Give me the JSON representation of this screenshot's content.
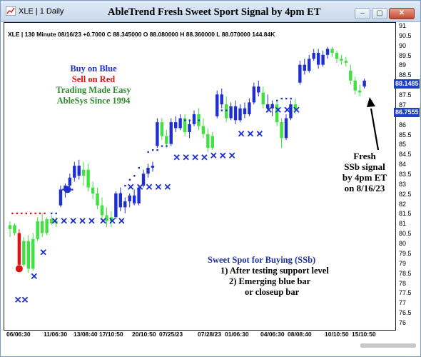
{
  "window": {
    "title": "XLE | 1 Daily",
    "headline": "AbleTrend Fresh Sweet Sport Signal by 4pm ET",
    "minimize_symbol": "–",
    "maximize_symbol": "▢",
    "close_symbol": "✕"
  },
  "chart_info": "XLE | 130 Minute 08/16/23 +0.7000 C 88.345000 O 88.080000 H 88.360000 L 88.070000 144.84K",
  "legend": {
    "buy": "Buy on Blue",
    "sell": "Sell on Red",
    "slogan": "Trading Made Easy",
    "since": "AbleSys Since 1994"
  },
  "fresh_note": {
    "line1": "Fresh",
    "line2": "SSb signal",
    "line3": "by 4pm ET",
    "line4": "on 8/16/23"
  },
  "ssb": {
    "title": "Sweet Spot for Buying (SSb)",
    "line1": "1) After testing support level",
    "line2": "2) Emerging blue bar",
    "line3": "or closeup bar"
  },
  "price_flags": {
    "current": "88.1485",
    "support": "86.7555"
  },
  "colors": {
    "blue_bar": "#1e2fd0",
    "green_bar": "#3fe23f",
    "red_bar": "#e01010",
    "title_blue": "#1a2fa8",
    "buy_text": "#1e2fd0",
    "sell_text": "#e01010",
    "slogan_text": "#2e8b2e"
  },
  "icons": [
    "app-icon",
    "arrow-icon"
  ],
  "chart_data": {
    "type": "candlestick",
    "title": "AbleTrend Fresh Sweet Sport Signal by 4pm ET",
    "ylim": [
      76,
      91
    ],
    "y_ticks": [
      "91",
      "90.5",
      "90",
      "89.5",
      "89",
      "88.5",
      "88",
      "87.5",
      "87",
      "86.5",
      "86",
      "85.5",
      "85",
      "84.5",
      "84",
      "83.5",
      "83",
      "82.5",
      "82",
      "81.5",
      "81",
      "80.5",
      "80",
      "79.5",
      "79",
      "78.5",
      "78",
      "77.5",
      "77",
      "76.5",
      "76"
    ],
    "x_ticks": [
      "06/06:30",
      "11/06:30",
      "13/08:40",
      "17/10:50",
      "20/10:50",
      "07/25/23",
      "07/28/23",
      "01/06:30",
      "04/06:30",
      "08/08:40",
      "10/10:50",
      "15/10:50"
    ],
    "grid": false,
    "bars": [
      {
        "x": 0,
        "o": 80.8,
        "h": 81.2,
        "l": 80.4,
        "c": 81.0,
        "color": "green"
      },
      {
        "x": 1,
        "o": 81.0,
        "h": 81.1,
        "l": 80.5,
        "c": 80.6,
        "color": "green"
      },
      {
        "x": 2,
        "o": 80.6,
        "h": 80.8,
        "l": 78.8,
        "c": 79.0,
        "color": "red"
      },
      {
        "x": 3,
        "o": 79.0,
        "h": 80.4,
        "l": 78.9,
        "c": 80.2,
        "color": "green"
      },
      {
        "x": 4,
        "o": 80.2,
        "h": 80.5,
        "l": 78.6,
        "c": 78.8,
        "color": "green"
      },
      {
        "x": 5,
        "o": 78.8,
        "h": 80.6,
        "l": 78.7,
        "c": 80.3,
        "color": "green"
      },
      {
        "x": 6,
        "o": 80.3,
        "h": 81.4,
        "l": 80.2,
        "c": 81.2,
        "color": "green"
      },
      {
        "x": 7,
        "o": 81.2,
        "h": 81.6,
        "l": 80.4,
        "c": 80.6,
        "color": "green"
      },
      {
        "x": 8,
        "o": 80.6,
        "h": 81.4,
        "l": 80.5,
        "c": 81.3,
        "color": "green"
      },
      {
        "x": 9,
        "o": 81.3,
        "h": 81.5,
        "l": 81.0,
        "c": 81.1,
        "color": "green"
      },
      {
        "x": 10,
        "o": 81.1,
        "h": 81.4,
        "l": 80.9,
        "c": 81.2,
        "color": "green"
      },
      {
        "x": 11,
        "o": 82.0,
        "h": 83.0,
        "l": 81.9,
        "c": 82.8,
        "color": "blue"
      },
      {
        "x": 12,
        "o": 82.8,
        "h": 83.1,
        "l": 82.4,
        "c": 83.0,
        "color": "blue"
      },
      {
        "x": 13,
        "o": 83.0,
        "h": 83.6,
        "l": 82.9,
        "c": 83.4,
        "color": "blue"
      },
      {
        "x": 14,
        "o": 83.4,
        "h": 84.2,
        "l": 83.2,
        "c": 84.0,
        "color": "blue"
      },
      {
        "x": 15,
        "o": 84.0,
        "h": 84.3,
        "l": 83.3,
        "c": 83.5,
        "color": "blue"
      },
      {
        "x": 16,
        "o": 83.5,
        "h": 84.2,
        "l": 83.0,
        "c": 83.8,
        "color": "green"
      },
      {
        "x": 17,
        "o": 83.8,
        "h": 84.1,
        "l": 82.7,
        "c": 82.9,
        "color": "green"
      },
      {
        "x": 18,
        "o": 82.9,
        "h": 83.2,
        "l": 82.3,
        "c": 82.6,
        "color": "green"
      },
      {
        "x": 19,
        "o": 82.6,
        "h": 82.9,
        "l": 81.8,
        "c": 82.0,
        "color": "green"
      },
      {
        "x": 20,
        "o": 82.0,
        "h": 82.4,
        "l": 81.3,
        "c": 81.5,
        "color": "green"
      },
      {
        "x": 21,
        "o": 81.5,
        "h": 81.9,
        "l": 80.9,
        "c": 81.2,
        "color": "green"
      },
      {
        "x": 22,
        "o": 81.2,
        "h": 81.7,
        "l": 80.9,
        "c": 81.4,
        "color": "green"
      },
      {
        "x": 23,
        "o": 81.4,
        "h": 82.7,
        "l": 81.3,
        "c": 82.6,
        "color": "blue"
      },
      {
        "x": 24,
        "o": 82.6,
        "h": 82.9,
        "l": 81.7,
        "c": 81.9,
        "color": "blue"
      },
      {
        "x": 25,
        "o": 81.9,
        "h": 82.4,
        "l": 81.6,
        "c": 82.2,
        "color": "blue"
      },
      {
        "x": 26,
        "o": 82.2,
        "h": 82.6,
        "l": 81.9,
        "c": 82.5,
        "color": "blue"
      },
      {
        "x": 27,
        "o": 82.5,
        "h": 82.8,
        "l": 82.0,
        "c": 82.1,
        "color": "blue"
      },
      {
        "x": 28,
        "o": 82.1,
        "h": 83.0,
        "l": 82.0,
        "c": 82.9,
        "color": "blue"
      },
      {
        "x": 29,
        "o": 83.0,
        "h": 83.8,
        "l": 82.9,
        "c": 83.6,
        "color": "blue"
      },
      {
        "x": 30,
        "o": 83.6,
        "h": 84.1,
        "l": 83.4,
        "c": 83.9,
        "color": "blue"
      },
      {
        "x": 31,
        "o": 83.9,
        "h": 84.2,
        "l": 83.7,
        "c": 84.0,
        "color": "blue"
      },
      {
        "x": 32,
        "o": 85.0,
        "h": 86.4,
        "l": 84.9,
        "c": 86.2,
        "color": "blue"
      },
      {
        "x": 33,
        "o": 86.2,
        "h": 86.4,
        "l": 85.3,
        "c": 85.5,
        "color": "green"
      },
      {
        "x": 34,
        "o": 85.5,
        "h": 85.8,
        "l": 84.9,
        "c": 85.1,
        "color": "green"
      },
      {
        "x": 35,
        "o": 85.1,
        "h": 86.4,
        "l": 85.0,
        "c": 86.2,
        "color": "blue"
      },
      {
        "x": 36,
        "o": 86.2,
        "h": 86.5,
        "l": 85.7,
        "c": 85.9,
        "color": "blue"
      },
      {
        "x": 37,
        "o": 85.9,
        "h": 86.6,
        "l": 85.8,
        "c": 86.4,
        "color": "blue"
      },
      {
        "x": 38,
        "o": 86.4,
        "h": 86.6,
        "l": 85.5,
        "c": 85.7,
        "color": "green"
      },
      {
        "x": 39,
        "o": 85.7,
        "h": 86.3,
        "l": 85.4,
        "c": 86.1,
        "color": "blue"
      },
      {
        "x": 40,
        "o": 86.1,
        "h": 86.8,
        "l": 86.0,
        "c": 86.6,
        "color": "blue"
      },
      {
        "x": 41,
        "o": 86.6,
        "h": 86.9,
        "l": 85.8,
        "c": 86.0,
        "color": "green"
      },
      {
        "x": 42,
        "o": 86.0,
        "h": 86.4,
        "l": 85.4,
        "c": 85.6,
        "color": "green"
      },
      {
        "x": 43,
        "o": 85.6,
        "h": 85.9,
        "l": 84.7,
        "c": 84.9,
        "color": "green"
      },
      {
        "x": 44,
        "o": 84.9,
        "h": 85.7,
        "l": 84.8,
        "c": 85.5,
        "color": "green"
      },
      {
        "x": 45,
        "o": 86.5,
        "h": 87.8,
        "l": 86.4,
        "c": 87.6,
        "color": "blue"
      },
      {
        "x": 46,
        "o": 87.6,
        "h": 87.9,
        "l": 86.9,
        "c": 87.1,
        "color": "blue"
      },
      {
        "x": 47,
        "o": 87.1,
        "h": 87.5,
        "l": 86.2,
        "c": 86.4,
        "color": "green"
      },
      {
        "x": 48,
        "o": 86.4,
        "h": 87.2,
        "l": 86.3,
        "c": 87.0,
        "color": "blue"
      },
      {
        "x": 49,
        "o": 87.0,
        "h": 87.3,
        "l": 86.1,
        "c": 86.3,
        "color": "blue"
      },
      {
        "x": 50,
        "o": 86.3,
        "h": 87.1,
        "l": 86.2,
        "c": 86.9,
        "color": "blue"
      },
      {
        "x": 51,
        "o": 86.9,
        "h": 87.2,
        "l": 86.4,
        "c": 86.6,
        "color": "blue"
      },
      {
        "x": 52,
        "o": 86.6,
        "h": 87.4,
        "l": 86.5,
        "c": 87.2,
        "color": "blue"
      },
      {
        "x": 53,
        "o": 87.2,
        "h": 88.2,
        "l": 87.1,
        "c": 88.0,
        "color": "blue"
      },
      {
        "x": 54,
        "o": 88.0,
        "h": 88.3,
        "l": 87.5,
        "c": 87.7,
        "color": "blue"
      },
      {
        "x": 55,
        "o": 87.7,
        "h": 88.0,
        "l": 86.9,
        "c": 87.1,
        "color": "green"
      },
      {
        "x": 56,
        "o": 87.1,
        "h": 87.6,
        "l": 86.7,
        "c": 86.9,
        "color": "blue"
      },
      {
        "x": 57,
        "o": 86.9,
        "h": 87.3,
        "l": 86.5,
        "c": 87.1,
        "color": "blue"
      },
      {
        "x": 58,
        "o": 87.1,
        "h": 87.3,
        "l": 86.0,
        "c": 86.2,
        "color": "green"
      },
      {
        "x": 59,
        "o": 86.2,
        "h": 86.4,
        "l": 84.9,
        "c": 85.4,
        "color": "green"
      },
      {
        "x": 60,
        "o": 85.4,
        "h": 86.6,
        "l": 85.3,
        "c": 86.4,
        "color": "blue"
      },
      {
        "x": 61,
        "o": 86.4,
        "h": 87.3,
        "l": 86.3,
        "c": 87.1,
        "color": "blue"
      },
      {
        "x": 62,
        "o": 87.1,
        "h": 87.4,
        "l": 86.6,
        "c": 86.8,
        "color": "green"
      },
      {
        "x": 63,
        "o": 88.2,
        "h": 89.3,
        "l": 88.1,
        "c": 89.1,
        "color": "blue"
      },
      {
        "x": 64,
        "o": 89.1,
        "h": 89.4,
        "l": 88.6,
        "c": 88.8,
        "color": "blue"
      },
      {
        "x": 65,
        "o": 88.8,
        "h": 89.6,
        "l": 88.7,
        "c": 89.4,
        "color": "blue"
      },
      {
        "x": 66,
        "o": 89.4,
        "h": 89.9,
        "l": 89.3,
        "c": 89.7,
        "color": "blue"
      },
      {
        "x": 67,
        "o": 89.7,
        "h": 89.9,
        "l": 88.9,
        "c": 89.1,
        "color": "blue"
      },
      {
        "x": 68,
        "o": 89.1,
        "h": 89.8,
        "l": 89.0,
        "c": 89.6,
        "color": "blue"
      },
      {
        "x": 69,
        "o": 89.6,
        "h": 90.0,
        "l": 89.4,
        "c": 89.9,
        "color": "blue"
      },
      {
        "x": 70,
        "o": 89.9,
        "h": 90.0,
        "l": 89.5,
        "c": 89.7,
        "color": "green"
      },
      {
        "x": 71,
        "o": 89.7,
        "h": 89.8,
        "l": 89.2,
        "c": 89.4,
        "color": "green"
      },
      {
        "x": 72,
        "o": 89.4,
        "h": 89.6,
        "l": 89.1,
        "c": 89.3,
        "color": "green"
      },
      {
        "x": 73,
        "o": 89.3,
        "h": 89.5,
        "l": 89.0,
        "c": 89.2,
        "color": "green"
      },
      {
        "x": 74,
        "o": 88.8,
        "h": 89.1,
        "l": 88.1,
        "c": 88.3,
        "color": "green"
      },
      {
        "x": 75,
        "o": 88.3,
        "h": 88.5,
        "l": 87.6,
        "c": 87.8,
        "color": "green"
      },
      {
        "x": 76,
        "o": 87.8,
        "h": 88.1,
        "l": 87.5,
        "c": 87.7,
        "color": "green"
      },
      {
        "x": 77,
        "o": 88.0,
        "h": 88.4,
        "l": 87.9,
        "c": 88.3,
        "color": "blue"
      }
    ],
    "ssb_marks": [
      {
        "x": 0.5,
        "y": 77.2
      },
      {
        "x": 2.0,
        "y": 77.2
      },
      {
        "x": 4.0,
        "y": 78.4
      },
      {
        "x": 6.0,
        "y": 79.6
      },
      {
        "x": 8.5,
        "y": 81.2
      },
      {
        "x": 10.5,
        "y": 81.2
      },
      {
        "x": 12.5,
        "y": 81.2
      },
      {
        "x": 14.5,
        "y": 81.2
      },
      {
        "x": 16.5,
        "y": 81.2
      },
      {
        "x": 19.0,
        "y": 81.2
      },
      {
        "x": 21.0,
        "y": 81.2
      },
      {
        "x": 23.0,
        "y": 81.2
      },
      {
        "x": 25.0,
        "y": 82.9
      },
      {
        "x": 27.0,
        "y": 82.9
      },
      {
        "x": 29.0,
        "y": 82.9
      },
      {
        "x": 31.0,
        "y": 82.9
      },
      {
        "x": 33.0,
        "y": 82.9
      },
      {
        "x": 35.0,
        "y": 84.4
      },
      {
        "x": 37.0,
        "y": 84.4
      },
      {
        "x": 39.0,
        "y": 84.4
      },
      {
        "x": 41.0,
        "y": 84.4
      },
      {
        "x": 43.0,
        "y": 84.5
      },
      {
        "x": 45.0,
        "y": 84.5
      },
      {
        "x": 47.0,
        "y": 84.5
      },
      {
        "x": 49.0,
        "y": 85.6
      },
      {
        "x": 51.0,
        "y": 85.6
      },
      {
        "x": 53.0,
        "y": 85.6
      },
      {
        "x": 55.0,
        "y": 86.8
      },
      {
        "x": 57.0,
        "y": 86.8
      },
      {
        "x": 59.0,
        "y": 86.8
      },
      {
        "x": 61.0,
        "y": 86.8
      }
    ],
    "stop_dots_red": [
      {
        "x": 0.5,
        "y": 81.6
      },
      {
        "x": 1.5,
        "y": 81.6
      },
      {
        "x": 2.5,
        "y": 81.6
      },
      {
        "x": 3.5,
        "y": 81.6
      },
      {
        "x": 4.5,
        "y": 81.6
      },
      {
        "x": 5.5,
        "y": 81.6
      },
      {
        "x": 6.5,
        "y": 81.6
      },
      {
        "x": 7.5,
        "y": 81.6
      }
    ],
    "stop_dots_blue": [
      {
        "x": 9.0,
        "y": 81.6
      },
      {
        "x": 10.0,
        "y": 81.6
      },
      {
        "x": 11.5,
        "y": 82.8
      },
      {
        "x": 12.5,
        "y": 82.8
      },
      {
        "x": 13.5,
        "y": 82.8
      },
      {
        "x": 24.0,
        "y": 82.6
      },
      {
        "x": 25.0,
        "y": 83.0
      },
      {
        "x": 26.0,
        "y": 83.3
      },
      {
        "x": 27.0,
        "y": 83.5
      },
      {
        "x": 28.0,
        "y": 83.9
      },
      {
        "x": 30.0,
        "y": 84.7
      },
      {
        "x": 31.0,
        "y": 84.8
      },
      {
        "x": 32.0,
        "y": 84.8
      },
      {
        "x": 33.0,
        "y": 85.0
      },
      {
        "x": 34.0,
        "y": 85.0
      },
      {
        "x": 37.0,
        "y": 86.3
      },
      {
        "x": 38.0,
        "y": 86.3
      },
      {
        "x": 39.0,
        "y": 86.3
      },
      {
        "x": 40.0,
        "y": 86.3
      },
      {
        "x": 41.0,
        "y": 86.3
      },
      {
        "x": 46.0,
        "y": 86.8
      },
      {
        "x": 47.0,
        "y": 86.8
      },
      {
        "x": 48.0,
        "y": 86.8
      },
      {
        "x": 49.0,
        "y": 86.8
      },
      {
        "x": 50.0,
        "y": 86.8
      },
      {
        "x": 56.0,
        "y": 86.9
      },
      {
        "x": 57.0,
        "y": 87.1
      },
      {
        "x": 58.0,
        "y": 87.3
      },
      {
        "x": 59.0,
        "y": 87.4
      },
      {
        "x": 60.0,
        "y": 87.4
      },
      {
        "x": 61.0,
        "y": 87.4
      }
    ],
    "circle_marks": [
      {
        "x": 2.0,
        "y": 78.8,
        "color": "red"
      },
      {
        "x": 12.5,
        "y": 82.8,
        "color": "blue"
      }
    ]
  }
}
